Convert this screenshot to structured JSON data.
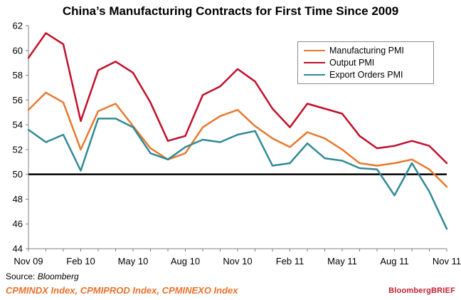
{
  "header": {
    "title": "China’s Manufacturing Contracts for First Time Since 2009"
  },
  "footer": {
    "source_label": "Source:",
    "source_value": "Bloomberg",
    "tickers": "CPMINDX Index, CPMIPROD Index, CPMINEXO Index",
    "brand": "BloombergBRIEF"
  },
  "colors": {
    "manufacturing": "#e8782e",
    "output": "#c0102a",
    "export": "#2f8a96",
    "reference_line": "#000000",
    "axis": "#7f7f7f"
  },
  "chart_data": {
    "type": "line",
    "title": "China’s Manufacturing Contracts for First Time Since 2009",
    "xlabel": "",
    "ylabel": "",
    "ylim": [
      44,
      62
    ],
    "yticks": [
      44,
      46,
      48,
      50,
      52,
      54,
      56,
      58,
      60,
      62
    ],
    "x": [
      "Nov 09",
      "Dec 09",
      "Jan 10",
      "Feb 10",
      "Mar 10",
      "Apr 10",
      "May 10",
      "Jun 10",
      "Jul 10",
      "Aug 10",
      "Sep 10",
      "Oct 10",
      "Nov 10",
      "Dec 10",
      "Jan 11",
      "Feb 11",
      "Mar 11",
      "Apr 11",
      "May 11",
      "Jun 11",
      "Jul 11",
      "Aug 11",
      "Sep 11",
      "Oct 11",
      "Nov 11"
    ],
    "xtick_labels": [
      "Nov 09",
      "Feb 10",
      "May 10",
      "Aug 10",
      "Nov 10",
      "Feb 11",
      "May 11",
      "Aug 11",
      "Nov 11"
    ],
    "xtick_indices": [
      0,
      3,
      6,
      9,
      12,
      15,
      18,
      21,
      24
    ],
    "reference_line": 50,
    "grid": false,
    "legend_position": "top-right",
    "series": [
      {
        "name": "Manufacturing PMI",
        "color_key": "manufacturing",
        "values": [
          55.2,
          56.6,
          55.8,
          52.0,
          55.1,
          55.7,
          53.9,
          52.1,
          51.2,
          51.7,
          53.8,
          54.7,
          55.2,
          53.9,
          52.9,
          52.2,
          53.4,
          52.9,
          52.0,
          50.9,
          50.7,
          50.9,
          51.2,
          50.4,
          49.0
        ]
      },
      {
        "name": "Output PMI",
        "color_key": "output",
        "values": [
          59.4,
          61.4,
          60.5,
          54.3,
          58.4,
          59.1,
          58.2,
          55.8,
          52.7,
          53.1,
          56.4,
          57.1,
          58.5,
          57.5,
          55.3,
          53.8,
          55.7,
          55.3,
          54.9,
          53.1,
          52.1,
          52.3,
          52.7,
          52.3,
          50.9
        ]
      },
      {
        "name": "Export Orders PMI",
        "color_key": "export",
        "values": [
          53.6,
          52.6,
          53.2,
          50.3,
          54.5,
          54.5,
          53.8,
          51.7,
          51.2,
          52.2,
          52.8,
          52.6,
          53.2,
          53.5,
          50.7,
          50.9,
          52.5,
          51.3,
          51.1,
          50.5,
          50.4,
          48.3,
          50.9,
          48.6,
          45.6
        ]
      }
    ]
  }
}
